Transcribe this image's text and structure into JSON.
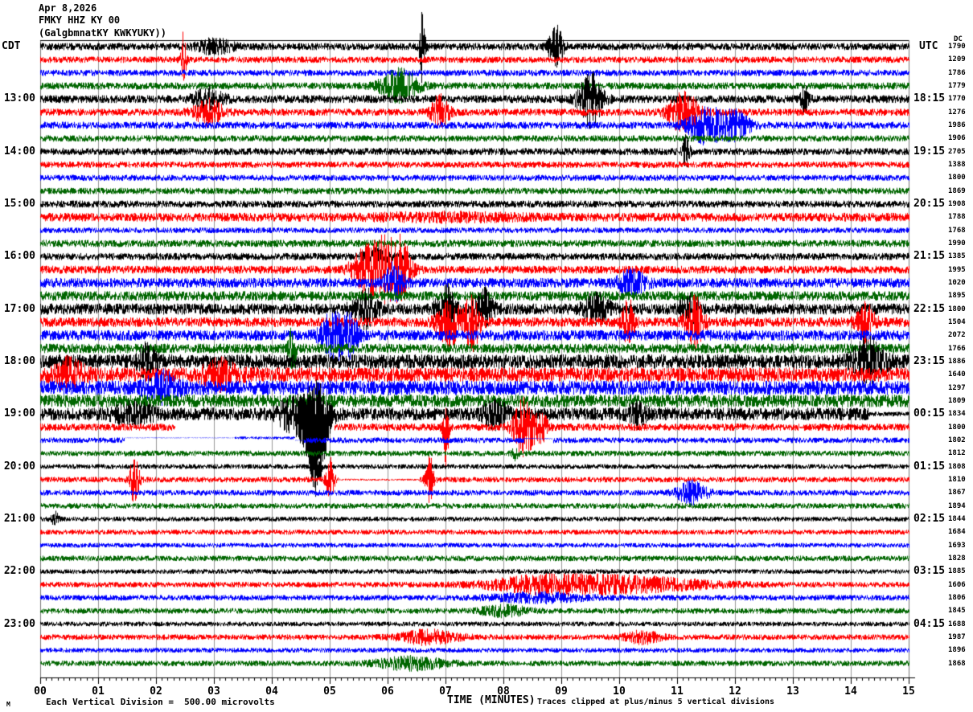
{
  "header": {
    "date": "Apr 8,2026",
    "station": "FMKY HHZ KY 00",
    "location": "(GalgbmnatKY KWKYUKY))",
    "left_tz": "CDT",
    "right_tz": "UTC",
    "dc_column_label": "DC"
  },
  "footer": {
    "scale_note": "Each Vertical Division =  500.00 microvolts",
    "xlabel": "TIME (MINUTES)",
    "clip_note": "Traces clipped at plus/minus 5 vertical divisions",
    "corner_glyph": "M"
  },
  "chart_data": {
    "type": "line",
    "title": "FMKY HHZ KY 00 helicorder seismogram",
    "xlabel": "TIME (MINUTES)",
    "x_range": [
      0,
      15
    ],
    "x_ticks": [
      "00",
      "01",
      "02",
      "03",
      "04",
      "05",
      "06",
      "07",
      "08",
      "09",
      "10",
      "11",
      "12",
      "13",
      "14",
      "15"
    ],
    "x_minor_tick_interval": 0.1,
    "minutes_per_line": 15,
    "clip_divisions": 5,
    "microvolts_per_division": "500.00",
    "grid": true,
    "colors": {
      "black": "#000000",
      "red": "#ff0000",
      "blue": "#0000ff",
      "green": "#006600",
      "grid": "#999999",
      "frame": "#777777"
    },
    "left_hour_labels": [
      {
        "row": 4,
        "label": "13:00"
      },
      {
        "row": 8,
        "label": "14:00"
      },
      {
        "row": 12,
        "label": "15:00"
      },
      {
        "row": 16,
        "label": "16:00"
      },
      {
        "row": 20,
        "label": "17:00"
      },
      {
        "row": 24,
        "label": "18:00"
      },
      {
        "row": 28,
        "label": "19:00"
      },
      {
        "row": 32,
        "label": "20:00"
      },
      {
        "row": 36,
        "label": "21:00"
      },
      {
        "row": 40,
        "label": "22:00"
      },
      {
        "row": 44,
        "label": "23:00"
      }
    ],
    "right_hour_labels": [
      {
        "row": 4,
        "label": "18:15"
      },
      {
        "row": 8,
        "label": "19:15"
      },
      {
        "row": 12,
        "label": "20:15"
      },
      {
        "row": 16,
        "label": "21:15"
      },
      {
        "row": 20,
        "label": "22:15"
      },
      {
        "row": 24,
        "label": "23:15"
      },
      {
        "row": 28,
        "label": "00:15"
      },
      {
        "row": 32,
        "label": "01:15"
      },
      {
        "row": 36,
        "label": "02:15"
      },
      {
        "row": 40,
        "label": "03:15"
      },
      {
        "row": 44,
        "label": "04:15"
      }
    ],
    "rows": [
      {
        "start_cdt": "12:00",
        "color": "black",
        "dc": "1790",
        "amp": 4.5,
        "events": [
          {
            "t": 3.0,
            "w": 0.3,
            "a": 8
          },
          {
            "t": 6.6,
            "w": 0.05,
            "a": 46
          },
          {
            "t": 8.9,
            "w": 0.12,
            "a": 26
          }
        ]
      },
      {
        "start_cdt": "12:15",
        "color": "red",
        "dc": "1209",
        "amp": 4,
        "events": [
          {
            "t": 2.47,
            "w": 0.04,
            "a": 34
          }
        ]
      },
      {
        "start_cdt": "12:30",
        "color": "blue",
        "dc": "1786",
        "amp": 4,
        "events": []
      },
      {
        "start_cdt": "12:45",
        "color": "green",
        "dc": "1779",
        "amp": 4.5,
        "events": [
          {
            "t": 6.2,
            "w": 0.3,
            "a": 20
          }
        ]
      },
      {
        "start_cdt": "13:00",
        "color": "black",
        "dc": "1770",
        "amp": 5,
        "events": [
          {
            "t": 2.9,
            "w": 0.25,
            "a": 12
          },
          {
            "t": 9.5,
            "w": 0.2,
            "a": 32
          },
          {
            "t": 13.2,
            "w": 0.07,
            "a": 16
          }
        ]
      },
      {
        "start_cdt": "13:15",
        "color": "red",
        "dc": "1276",
        "amp": 4.5,
        "events": [
          {
            "t": 2.9,
            "w": 0.25,
            "a": 14
          },
          {
            "t": 6.9,
            "w": 0.15,
            "a": 20
          },
          {
            "t": 11.1,
            "w": 0.25,
            "a": 26
          }
        ]
      },
      {
        "start_cdt": "13:30",
        "color": "blue",
        "dc": "1986",
        "amp": 4.5,
        "events": [
          {
            "t": 11.5,
            "w": 0.3,
            "a": 22
          },
          {
            "t": 12.0,
            "w": 0.25,
            "a": 16
          }
        ]
      },
      {
        "start_cdt": "13:45",
        "color": "green",
        "dc": "1906",
        "amp": 4,
        "events": []
      },
      {
        "start_cdt": "14:00",
        "color": "black",
        "dc": "2705",
        "amp": 4.5,
        "events": [
          {
            "t": 11.15,
            "w": 0.06,
            "a": 18
          }
        ]
      },
      {
        "start_cdt": "14:15",
        "color": "red",
        "dc": "1388",
        "amp": 4,
        "events": []
      },
      {
        "start_cdt": "14:30",
        "color": "blue",
        "dc": "1800",
        "amp": 3.8,
        "events": []
      },
      {
        "start_cdt": "14:45",
        "color": "green",
        "dc": "1869",
        "amp": 4,
        "events": []
      },
      {
        "start_cdt": "15:00",
        "color": "black",
        "dc": "1908",
        "amp": 4.5,
        "events": []
      },
      {
        "start_cdt": "15:15",
        "color": "red",
        "dc": "1788",
        "amp": 5.5,
        "events": [
          {
            "t": 7.0,
            "w": 1.2,
            "a": 3
          }
        ]
      },
      {
        "start_cdt": "15:30",
        "color": "blue",
        "dc": "1768",
        "amp": 3.5,
        "events": []
      },
      {
        "start_cdt": "15:45",
        "color": "green",
        "dc": "1990",
        "amp": 4.5,
        "events": []
      },
      {
        "start_cdt": "16:00",
        "color": "black",
        "dc": "1385",
        "amp": 4.5,
        "events": [
          {
            "t": 5.8,
            "w": 0.2,
            "a": 8
          }
        ]
      },
      {
        "start_cdt": "16:15",
        "color": "red",
        "dc": "1995",
        "amp": 5,
        "events": [
          {
            "t": 5.55,
            "w": 0.2,
            "a": 18
          },
          {
            "t": 5.95,
            "w": 0.3,
            "a": 40
          },
          {
            "t": 6.25,
            "w": 0.15,
            "a": 24
          }
        ]
      },
      {
        "start_cdt": "16:30",
        "color": "blue",
        "dc": "1020",
        "amp": 6,
        "events": [
          {
            "t": 6.1,
            "w": 0.15,
            "a": 22
          },
          {
            "t": 10.2,
            "w": 0.25,
            "a": 13
          }
        ]
      },
      {
        "start_cdt": "16:45",
        "color": "green",
        "dc": "1895",
        "amp": 6,
        "events": []
      },
      {
        "start_cdt": "17:00",
        "color": "black",
        "dc": "1800",
        "amp": 7,
        "events": [
          {
            "t": 5.6,
            "w": 0.2,
            "a": 22
          },
          {
            "t": 7.0,
            "w": 0.15,
            "a": 28
          },
          {
            "t": 7.65,
            "w": 0.15,
            "a": 22
          },
          {
            "t": 9.6,
            "w": 0.2,
            "a": 18
          },
          {
            "t": 11.2,
            "w": 0.15,
            "a": 16
          }
        ]
      },
      {
        "start_cdt": "17:15",
        "color": "red",
        "dc": "1504",
        "amp": 6,
        "events": [
          {
            "t": 7.05,
            "w": 0.2,
            "a": 28
          },
          {
            "t": 7.45,
            "w": 0.15,
            "a": 32
          },
          {
            "t": 10.15,
            "w": 0.1,
            "a": 28
          },
          {
            "t": 11.3,
            "w": 0.15,
            "a": 32
          },
          {
            "t": 14.25,
            "w": 0.15,
            "a": 22
          }
        ]
      },
      {
        "start_cdt": "17:30",
        "color": "blue",
        "dc": "2072",
        "amp": 6.5,
        "events": [
          {
            "t": 5.05,
            "w": 0.2,
            "a": 28
          },
          {
            "t": 5.35,
            "w": 0.15,
            "a": 22
          }
        ]
      },
      {
        "start_cdt": "17:45",
        "color": "green",
        "dc": "1766",
        "amp": 6,
        "events": [
          {
            "t": 4.35,
            "w": 0.06,
            "a": 28
          }
        ]
      },
      {
        "start_cdt": "18:00",
        "color": "black",
        "dc": "1886",
        "amp": 9,
        "events": [
          {
            "t": 1.85,
            "w": 0.15,
            "a": 18
          },
          {
            "t": 14.3,
            "w": 0.25,
            "a": 26
          }
        ]
      },
      {
        "start_cdt": "18:15",
        "color": "red",
        "dc": "1640",
        "amp": 9,
        "events": [
          {
            "t": 0.5,
            "w": 0.25,
            "a": 16
          },
          {
            "t": 3.1,
            "w": 0.3,
            "a": 14
          }
        ]
      },
      {
        "start_cdt": "18:30",
        "color": "blue",
        "dc": "1297",
        "amp": 9,
        "events": [
          {
            "t": 2.1,
            "w": 0.25,
            "a": 16
          }
        ]
      },
      {
        "start_cdt": "18:45",
        "color": "green",
        "dc": "1809",
        "amp": 8,
        "events": []
      },
      {
        "start_cdt": "19:00",
        "color": "black",
        "dc": "1834",
        "amp": 8,
        "events": [
          {
            "t": 1.6,
            "w": 0.3,
            "a": 12
          },
          {
            "t": 4.35,
            "w": 0.25,
            "a": 18
          },
          {
            "t": 4.75,
            "w": 0.2,
            "a": 36,
            "down": 60
          },
          {
            "t": 7.85,
            "w": 0.2,
            "a": 14
          },
          {
            "t": 10.3,
            "w": 0.15,
            "a": 12
          }
        ],
        "segments": [
          {
            "from": 14.3,
            "to": 15,
            "amp": 3
          }
        ]
      },
      {
        "start_cdt": "19:15",
        "color": "red",
        "dc": "1800",
        "amp": 4.5,
        "events": [
          {
            "t": 7.0,
            "w": 0.05,
            "a": 20,
            "down": 30
          },
          {
            "t": 8.35,
            "w": 0.18,
            "a": 36
          },
          {
            "t": 8.65,
            "w": 0.12,
            "a": 16
          }
        ],
        "segments": [
          {
            "from": 2.33,
            "to": 5.08,
            "gap": true
          }
        ]
      },
      {
        "start_cdt": "19:30",
        "color": "blue",
        "dc": "1802",
        "amp": 3.5,
        "events": [],
        "segments": [
          {
            "from": 1.45,
            "to": 3.35,
            "amp": 0.4,
            "offset": -3
          },
          {
            "from": 3.35,
            "to": 4.4,
            "amp": 1.8,
            "offset": -3
          },
          {
            "from": 4.4,
            "to": 4.55,
            "amp": 0.4,
            "offset": 0
          },
          {
            "from": 8.35,
            "to": 8.85,
            "amp": 0.6,
            "offset": -2
          }
        ]
      },
      {
        "start_cdt": "19:45",
        "color": "green",
        "dc": "1812",
        "amp": 3.5,
        "events": [
          {
            "t": 8.2,
            "w": 0.05,
            "a": 7
          }
        ]
      },
      {
        "start_cdt": "20:00",
        "color": "black",
        "dc": "1808",
        "amp": 3,
        "events": [
          {
            "t": 4.8,
            "w": 0.05,
            "a": 4,
            "down": 14
          }
        ]
      },
      {
        "start_cdt": "20:15",
        "color": "red",
        "dc": "1810",
        "amp": 3.5,
        "events": [
          {
            "t": 1.62,
            "w": 0.08,
            "a": 30
          },
          {
            "t": 5.0,
            "w": 0.07,
            "a": 26
          },
          {
            "t": 6.72,
            "w": 0.07,
            "a": 30
          }
        ],
        "segments": [
          {
            "from": 5.15,
            "to": 6.55,
            "amp": 1.2
          }
        ]
      },
      {
        "start_cdt": "20:30",
        "color": "blue",
        "dc": "1867",
        "amp": 3.5,
        "events": [
          {
            "t": 11.25,
            "w": 0.25,
            "a": 14
          }
        ]
      },
      {
        "start_cdt": "20:45",
        "color": "green",
        "dc": "1894",
        "amp": 3.5,
        "events": []
      },
      {
        "start_cdt": "21:00",
        "color": "black",
        "dc": "1844",
        "amp": 3,
        "events": [
          {
            "t": 0.25,
            "w": 0.06,
            "a": 8
          }
        ]
      },
      {
        "start_cdt": "21:15",
        "color": "red",
        "dc": "1684",
        "amp": 3.2,
        "events": []
      },
      {
        "start_cdt": "21:30",
        "color": "blue",
        "dc": "1693",
        "amp": 3,
        "events": []
      },
      {
        "start_cdt": "21:45",
        "color": "green",
        "dc": "1828",
        "amp": 3.5,
        "events": []
      },
      {
        "start_cdt": "22:00",
        "color": "black",
        "dc": "1885",
        "amp": 3,
        "events": []
      },
      {
        "start_cdt": "22:15",
        "color": "red",
        "dc": "1606",
        "amp": 3.5,
        "events": [
          {
            "t": 9.8,
            "w": 1.6,
            "a": 10
          },
          {
            "t": 8.5,
            "w": 0.8,
            "a": 5
          }
        ]
      },
      {
        "start_cdt": "22:30",
        "color": "blue",
        "dc": "1806",
        "amp": 3.5,
        "events": [
          {
            "t": 8.6,
            "w": 0.8,
            "a": 5
          }
        ]
      },
      {
        "start_cdt": "22:45",
        "color": "green",
        "dc": "1845",
        "amp": 3.5,
        "events": [
          {
            "t": 8.0,
            "w": 0.4,
            "a": 6
          }
        ]
      },
      {
        "start_cdt": "23:00",
        "color": "black",
        "dc": "1688",
        "amp": 3,
        "events": []
      },
      {
        "start_cdt": "23:15",
        "color": "red",
        "dc": "1987",
        "amp": 3.5,
        "events": [
          {
            "t": 6.7,
            "w": 0.5,
            "a": 8
          },
          {
            "t": 10.4,
            "w": 0.3,
            "a": 7
          }
        ]
      },
      {
        "start_cdt": "23:30",
        "color": "blue",
        "dc": "1896",
        "amp": 3,
        "events": []
      },
      {
        "start_cdt": "23:45",
        "color": "green",
        "dc": "1868",
        "amp": 3.5,
        "events": [
          {
            "t": 6.4,
            "w": 0.6,
            "a": 7
          }
        ]
      }
    ]
  }
}
